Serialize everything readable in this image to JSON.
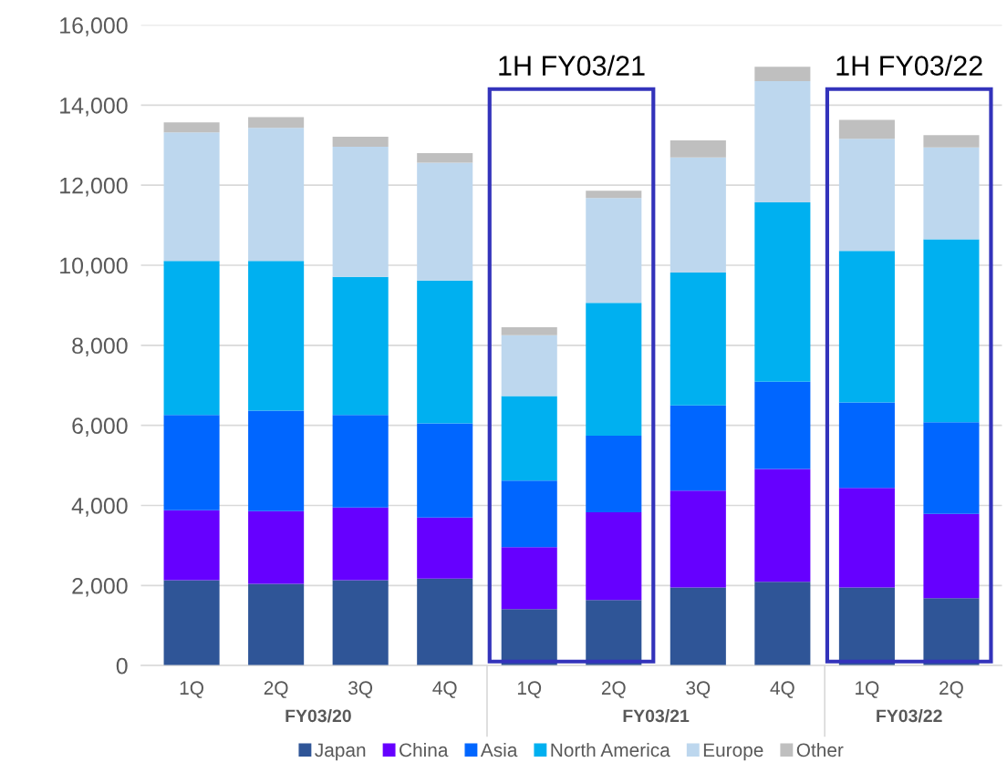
{
  "chart_data": {
    "type": "bar",
    "stacked": true,
    "categories": [
      "1Q",
      "2Q",
      "3Q",
      "4Q",
      "1Q",
      "2Q",
      "3Q",
      "4Q",
      "1Q",
      "2Q"
    ],
    "series": [
      {
        "name": "Japan",
        "color": "#2f5597",
        "values": [
          2130,
          2040,
          2130,
          2170,
          1410,
          1640,
          1950,
          2090,
          1950,
          1680
        ]
      },
      {
        "name": "China",
        "color": "#6600ff",
        "values": [
          1750,
          1820,
          1820,
          1530,
          1550,
          2190,
          2420,
          2820,
          2490,
          2110
        ]
      },
      {
        "name": "Asia",
        "color": "#0066ff",
        "values": [
          2380,
          2510,
          2310,
          2350,
          1660,
          1910,
          2130,
          2180,
          2130,
          2290
        ]
      },
      {
        "name": "North America",
        "color": "#00b0f0",
        "values": [
          3850,
          3740,
          3450,
          3570,
          2110,
          3320,
          3320,
          4480,
          3790,
          4570
        ]
      },
      {
        "name": "Europe",
        "color": "#bdd7ee",
        "values": [
          3210,
          3320,
          3250,
          2940,
          1520,
          2620,
          2870,
          3030,
          2800,
          2290
        ]
      },
      {
        "name": "Other",
        "color": "#bfbfbf",
        "values": [
          250,
          270,
          250,
          240,
          200,
          180,
          430,
          360,
          470,
          310
        ]
      }
    ],
    "ylim": [
      0,
      16000
    ],
    "yticks": [
      {
        "value": 0,
        "label": "0"
      },
      {
        "value": 2000,
        "label": "2,000"
      },
      {
        "value": 4000,
        "label": "4,000"
      },
      {
        "value": 6000,
        "label": "6,000"
      },
      {
        "value": 8000,
        "label": "8,000"
      },
      {
        "value": 10000,
        "label": "10,000"
      },
      {
        "value": 12000,
        "label": "12,000"
      },
      {
        "value": 14000,
        "label": "14,000"
      },
      {
        "value": 16000,
        "label": "16,000"
      }
    ],
    "grid": "y",
    "legend": "bottom",
    "annotations": [
      "FY03/20",
      "FY03/21",
      "FY03/22",
      "1H FY03/21",
      "1H FY03/22"
    ]
  }
}
